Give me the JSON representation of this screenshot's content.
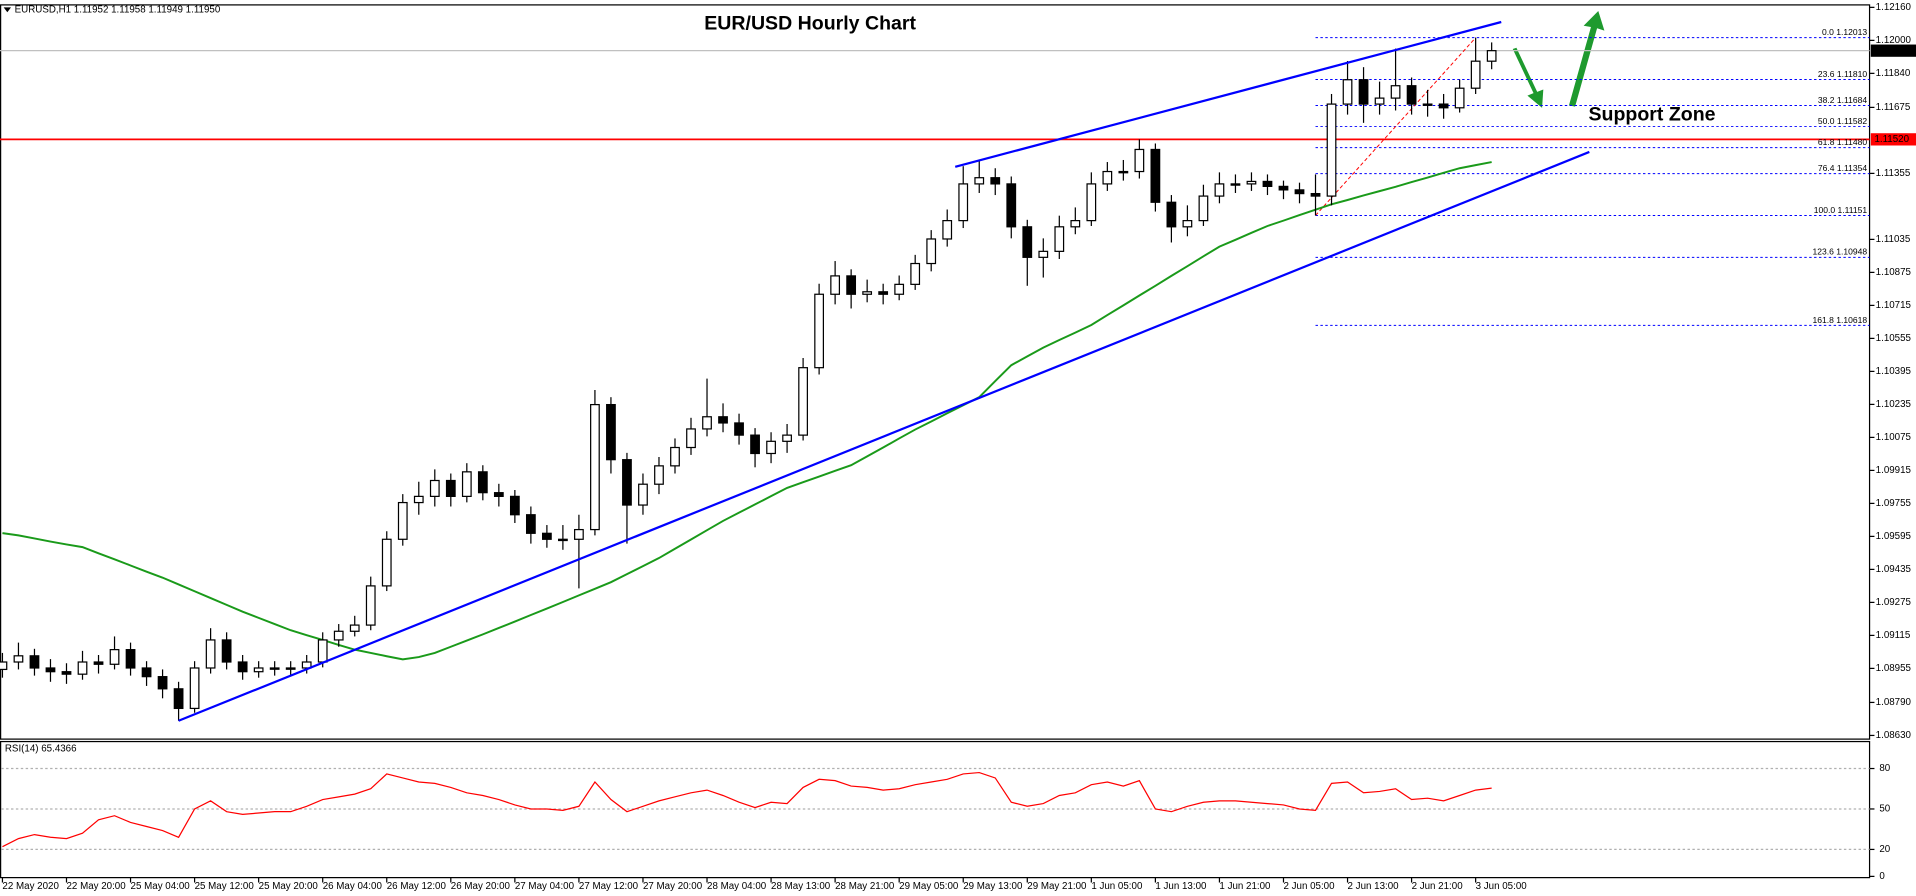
{
  "chart_data": {
    "type": "candlestick",
    "title": "EUR/USD Hourly Chart",
    "symbol_label": "EURUSD,H1  1.11952 1.11958 1.11949 1.11950",
    "xlim": [
      0,
      116.6
    ],
    "xticks": [
      {
        "value": 0,
        "label": "22 May 2020"
      },
      {
        "value": 4,
        "label": "22 May 20:00"
      },
      {
        "value": 8,
        "label": "25 May 04:00"
      },
      {
        "value": 12,
        "label": "25 May 12:00"
      },
      {
        "value": 16,
        "label": "25 May 20:00"
      },
      {
        "value": 20,
        "label": "26 May 04:00"
      },
      {
        "value": 24,
        "label": "26 May 12:00"
      },
      {
        "value": 28,
        "label": "26 May 20:00"
      },
      {
        "value": 32,
        "label": "27 May 04:00"
      },
      {
        "value": 36,
        "label": "27 May 12:00"
      },
      {
        "value": 40,
        "label": "27 May 20:00"
      },
      {
        "value": 44,
        "label": "28 May 04:00"
      },
      {
        "value": 48,
        "label": "28 May 13:00"
      },
      {
        "value": 52,
        "label": "28 May 21:00"
      },
      {
        "value": 56,
        "label": "29 May 05:00"
      },
      {
        "value": 60,
        "label": "29 May 13:00"
      },
      {
        "value": 64,
        "label": "29 May 21:00"
      },
      {
        "value": 68,
        "label": "1 Jun 05:00"
      },
      {
        "value": 72,
        "label": "1 Jun 13:00"
      },
      {
        "value": 76,
        "label": "1 Jun 21:00"
      },
      {
        "value": 80,
        "label": "2 Jun 05:00"
      },
      {
        "value": 84,
        "label": "2 Jun 13:00"
      },
      {
        "value": 88,
        "label": "2 Jun 21:00"
      },
      {
        "value": 92,
        "label": "3 Jun 05:00"
      }
    ],
    "ylim": [
      1.0863,
      1.1216
    ],
    "yticks": [
      {
        "value": 1.1216,
        "label": "1.12160"
      },
      {
        "value": 1.12,
        "label": "1.12000"
      },
      {
        "value": 1.1184,
        "label": "1.11840"
      },
      1.11675,
      1.11355,
      1.11035,
      1.10875,
      1.10715,
      1.10555,
      1.10395,
      1.10235,
      1.10075,
      1.09915,
      1.09755,
      1.09595,
      1.09435,
      1.09275,
      1.09115,
      1.08955,
      {
        "value": 1.0879,
        "label": "1.08790"
      },
      {
        "value": 1.0863,
        "label": "1.08630"
      }
    ],
    "up_color": "#ffffff",
    "down_color": "#000000",
    "open": [
      1.0895,
      1.08986,
      1.09016,
      1.08957,
      1.08939,
      1.08927,
      1.08986,
      1.08975,
      1.09046,
      1.08957,
      1.08915,
      1.08856,
      1.08761,
      1.08957,
      1.09093,
      1.08986,
      1.08939,
      1.08957,
      1.08951,
      1.08957,
      1.08986,
      1.09093,
      1.09135,
      1.09165,
      1.09355,
      1.09581,
      1.09759,
      1.09789,
      1.09866,
      1.09789,
      1.09908,
      1.09807,
      1.09789,
      1.097,
      1.0961,
      1.09581,
      1.09581,
      1.09628,
      1.10234,
      1.09967,
      1.09747,
      1.09848,
      1.09937,
      1.10026,
      1.10116,
      1.10175,
      1.10145,
      1.10086,
      1.09997,
      1.10056,
      1.10086,
      1.10413,
      1.10769,
      1.10858,
      1.10769,
      1.10781,
      1.10769,
      1.10817,
      1.10918,
      1.11037,
      1.11126,
      1.11304,
      1.11334,
      1.11304,
      1.11096,
      1.10948,
      1.10977,
      1.11096,
      1.11126,
      1.11304,
      1.11364,
      1.11364,
      1.11471,
      1.11215,
      1.11096,
      1.11126,
      1.11245,
      1.11304,
      1.11304,
      1.11316,
      1.11292,
      1.11275,
      1.11257,
      1.11245,
      1.11691,
      1.11809,
      1.11691,
      1.1172,
      1.1178,
      1.11691,
      1.11691,
      1.11673,
      1.11768,
      1.11899
    ],
    "high": [
      1.0903,
      1.0908,
      1.0905,
      1.09,
      1.0898,
      1.0904,
      1.0902,
      1.0911,
      1.0908,
      1.0899,
      1.0895,
      1.0889,
      1.0899,
      1.0915,
      1.0913,
      1.0902,
      1.0899,
      1.0899,
      1.0899,
      1.0902,
      1.0913,
      1.0917,
      1.0921,
      1.094,
      1.0962,
      1.098,
      1.0986,
      1.0992,
      1.099,
      1.0995,
      1.0994,
      1.0985,
      1.0982,
      1.0974,
      1.0965,
      1.0965,
      1.097,
      1.10305,
      1.1027,
      1.1,
      1.099,
      1.0998,
      1.1007,
      1.1017,
      1.1036,
      1.1024,
      1.1019,
      1.1012,
      1.101,
      1.1014,
      1.1046,
      1.1082,
      1.1093,
      1.1089,
      1.1084,
      1.1082,
      1.1086,
      1.1096,
      1.1108,
      1.1118,
      1.1139,
      1.1142,
      1.1138,
      1.1134,
      1.1113,
      1.1104,
      1.1115,
      1.1119,
      1.1136,
      1.1141,
      1.1142,
      1.1152,
      1.115,
      1.1125,
      1.112,
      1.113,
      1.1136,
      1.1135,
      1.1136,
      1.1135,
      1.1132,
      1.1131,
      1.1135,
      1.1174,
      1.119,
      1.1187,
      1.118,
      1.1196,
      1.1182,
      1.1176,
      1.1174,
      1.1181,
      1.12013,
      1.1199
    ],
    "low": [
      1.0891,
      1.0895,
      1.0892,
      1.0889,
      1.0888,
      1.089,
      1.0893,
      1.0895,
      1.0892,
      1.0887,
      1.0881,
      1.08701,
      1.0874,
      1.0893,
      1.0895,
      1.089,
      1.0891,
      1.0892,
      1.0892,
      1.0893,
      1.0896,
      1.0906,
      1.0911,
      1.0914,
      1.0933,
      1.0955,
      1.097,
      1.0974,
      1.0974,
      1.0976,
      1.0977,
      1.0974,
      1.0966,
      1.0956,
      1.0954,
      1.0953,
      1.09343,
      1.096,
      1.099,
      1.0956,
      1.097,
      1.098,
      1.099,
      1.0999,
      1.1008,
      1.101,
      1.1004,
      1.0993,
      1.0995,
      1.1,
      1.1006,
      1.1038,
      1.1072,
      1.107,
      1.1073,
      1.1072,
      1.1074,
      1.1079,
      1.1088,
      1.11,
      1.1109,
      1.1126,
      1.1125,
      1.1104,
      1.1081,
      1.1085,
      1.1094,
      1.1106,
      1.111,
      1.1127,
      1.1132,
      1.1133,
      1.1117,
      1.1102,
      1.1105,
      1.111,
      1.1121,
      1.1126,
      1.1127,
      1.1125,
      1.1123,
      1.1121,
      1.11151,
      1.112,
      1.1164,
      1.116,
      1.1164,
      1.1166,
      1.1164,
      1.1163,
      1.1162,
      1.1165,
      1.1174,
      1.1186
    ],
    "close": [
      1.08986,
      1.09016,
      1.08957,
      1.08939,
      1.08927,
      1.08986,
      1.08975,
      1.09046,
      1.08957,
      1.08915,
      1.08856,
      1.08761,
      1.08957,
      1.09093,
      1.08986,
      1.08939,
      1.08957,
      1.08951,
      1.08957,
      1.08986,
      1.09093,
      1.09135,
      1.09165,
      1.09355,
      1.09581,
      1.09759,
      1.09789,
      1.09866,
      1.09789,
      1.09908,
      1.09807,
      1.09789,
      1.097,
      1.0961,
      1.09581,
      1.09581,
      1.09628,
      1.10234,
      1.09967,
      1.09747,
      1.09848,
      1.09937,
      1.10026,
      1.10116,
      1.10175,
      1.10145,
      1.10086,
      1.09997,
      1.10056,
      1.10086,
      1.10413,
      1.10769,
      1.10858,
      1.10769,
      1.10781,
      1.10769,
      1.10817,
      1.10918,
      1.11037,
      1.11126,
      1.11304,
      1.11334,
      1.11304,
      1.11096,
      1.10948,
      1.10977,
      1.11096,
      1.11126,
      1.11304,
      1.11364,
      1.11364,
      1.11471,
      1.11215,
      1.11096,
      1.11126,
      1.11245,
      1.11304,
      1.11304,
      1.11316,
      1.11292,
      1.11275,
      1.11257,
      1.11245,
      1.11691,
      1.11809,
      1.11691,
      1.1172,
      1.1178,
      1.11691,
      1.11691,
      1.11673,
      1.11768,
      1.11899,
      1.1195
    ],
    "moving_average": {
      "color": "#1a9a1a",
      "values": [
        1.09611,
        1.096,
        1.09585,
        1.0957,
        1.09556,
        1.09543,
        1.09513,
        1.09484,
        1.09454,
        1.09424,
        1.09395,
        1.09362,
        1.09329,
        1.09296,
        1.09263,
        1.0923,
        1.092,
        1.0917,
        1.0914,
        1.09116,
        1.09093,
        1.09069,
        1.09046,
        1.0903,
        1.09014,
        1.08999,
        1.0901,
        1.0903,
        1.0906,
        1.0909,
        1.0912,
        1.09151,
        1.09182,
        1.09214,
        1.09245,
        1.09277,
        1.09309,
        1.09341,
        1.09373,
        1.09412,
        1.09451,
        1.0949,
        1.09535,
        1.0958,
        1.09625,
        1.0967,
        1.0971,
        1.0975,
        1.0979,
        1.0983,
        1.09858,
        1.09885,
        1.09913,
        1.0994,
        1.09983,
        1.10026,
        1.1007,
        1.10113,
        1.10152,
        1.10192,
        1.10231,
        1.1027,
        1.10348,
        1.10425,
        1.10468,
        1.1051,
        1.10547,
        1.10583,
        1.1062,
        1.10668,
        1.10715,
        1.10763,
        1.1081,
        1.10858,
        1.10905,
        1.10953,
        1.11,
        1.11033,
        1.11067,
        1.111,
        1.11126,
        1.11153,
        1.11179,
        1.11205,
        1.11226,
        1.11248,
        1.11269,
        1.1129,
        1.11313,
        1.11335,
        1.11358,
        1.1138,
        1.11395,
        1.1141
      ]
    },
    "current_price": {
      "value": 1.1195,
      "label": "1.11950"
    },
    "level": {
      "value": 1.1152,
      "label": "1.11520",
      "color": "#ff0000"
    },
    "trendlines": [
      {
        "x": [
          59.5,
          93.6
        ],
        "y": [
          1.11387,
          1.12089
        ],
        "color": "#0000ff"
      },
      {
        "x": [
          11,
          99.1
        ],
        "y": [
          1.08701,
          1.11459
        ],
        "color": "#0000ff"
      }
    ],
    "fibonacci": {
      "color": "#0000ff",
      "anchor_color": "#ff0000",
      "anchor_x": [
        82,
        92
      ],
      "anchor_y": [
        1.11151,
        1.12013
      ],
      "levels": [
        {
          "value": 1.12013,
          "label": "0.0 1.12013"
        },
        {
          "value": 1.1181,
          "label": "23.6 1.11810"
        },
        {
          "value": 1.11684,
          "label": "38.2 1.11684"
        },
        {
          "value": 1.11582,
          "label": "50.0 1.11582"
        },
        {
          "value": 1.1148,
          "label": "61.8 1.11480"
        },
        {
          "value": 1.11354,
          "label": "76.4 1.11354"
        },
        {
          "value": 1.11151,
          "label": "100.0 1.11151"
        },
        {
          "value": 1.10948,
          "label": "123.6 1.10948"
        },
        {
          "value": 1.10618,
          "label": "161.8 1.10618"
        }
      ]
    },
    "annotation": {
      "text": "Support Zone",
      "color": "#1e9a2e"
    },
    "rsi": {
      "label": "RSI(14) 65.4366",
      "color": "#ff0000",
      "ylim": [
        0,
        100
      ],
      "yticks": [
        0,
        20,
        50,
        80
      ],
      "values": [
        22,
        28,
        31,
        29,
        28,
        32,
        42,
        45,
        40,
        37,
        34,
        29,
        50,
        56,
        48,
        46,
        47,
        48,
        48,
        52,
        57,
        59,
        61,
        65,
        76,
        73,
        70,
        69,
        66,
        62,
        60,
        57,
        53,
        50,
        50,
        49,
        52,
        70,
        57,
        48,
        52,
        56,
        59,
        62,
        64,
        60,
        55,
        51,
        55,
        54,
        66,
        72,
        71,
        67,
        66,
        64,
        65,
        68,
        70,
        72,
        76,
        77,
        73,
        55,
        52,
        54,
        60,
        62,
        68,
        70,
        67,
        71,
        50,
        48,
        52,
        55,
        56,
        56,
        55,
        54,
        53,
        50,
        49,
        69,
        70,
        62,
        63,
        65,
        57,
        58,
        56,
        60,
        64,
        65.4366
      ]
    }
  }
}
